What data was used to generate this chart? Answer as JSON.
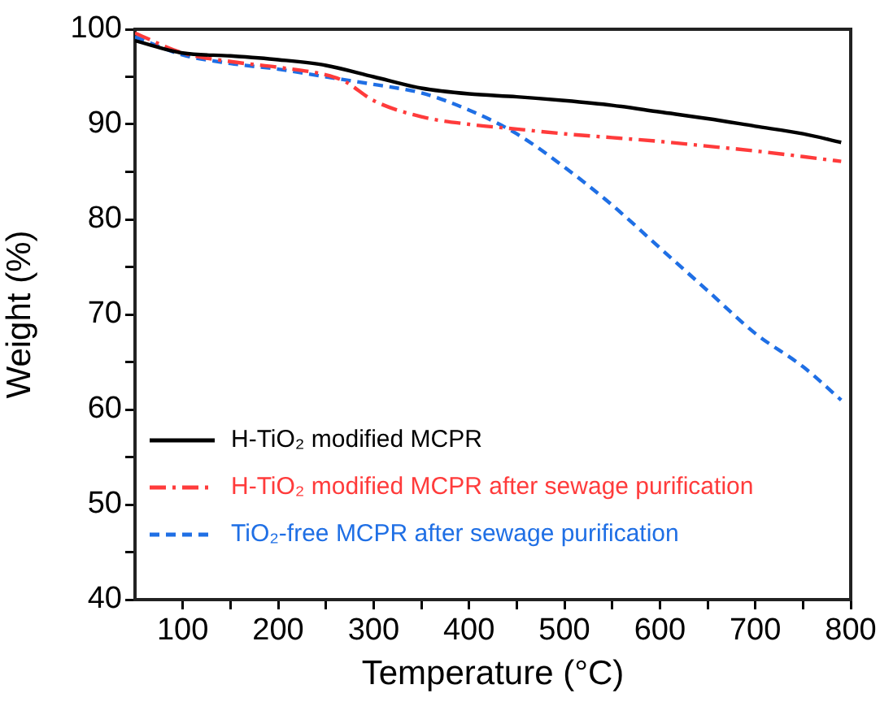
{
  "chart_data": {
    "type": "line",
    "xlabel": "Temperature (°C)",
    "ylabel": "Weight (%)",
    "xlim": [
      50,
      800
    ],
    "ylim": [
      40,
      100
    ],
    "xticks": [
      100,
      {
        "value": 150,
        "label": null
      },
      200,
      {
        "value": 250,
        "label": null
      },
      300,
      {
        "value": 350,
        "label": null
      },
      400,
      {
        "value": 450,
        "label": null
      },
      500,
      {
        "value": 550,
        "label": null
      },
      600,
      {
        "value": 650,
        "label": null
      },
      700,
      {
        "value": 750,
        "label": null
      },
      800
    ],
    "yticks": [
      40,
      {
        "value": 45,
        "label": null
      },
      50,
      {
        "value": 55,
        "label": null
      },
      60,
      {
        "value": 65,
        "label": null
      },
      70,
      {
        "value": 75,
        "label": null
      },
      80,
      {
        "value": 85,
        "label": null
      },
      90,
      {
        "value": 95,
        "label": null
      },
      100
    ],
    "grid": false,
    "legend": "bottom left",
    "marker": "none",
    "series": [
      {
        "name": "H-TiO₂ modified MCPR",
        "color": "#000000",
        "line_style": "solid",
        "x": [
          50,
          100,
          150,
          200,
          250,
          300,
          350,
          400,
          450,
          500,
          550,
          600,
          650,
          700,
          750,
          790
        ],
        "values": [
          98.8,
          97.5,
          97.2,
          96.8,
          96.2,
          95.0,
          93.8,
          93.2,
          92.9,
          92.5,
          92.0,
          91.3,
          90.6,
          89.8,
          89.0,
          88.1
        ]
      },
      {
        "name": "H-TiO₂ modified MCPR after sewage purification",
        "color": "#ff3b3b",
        "line_style": "dashdot",
        "x": [
          50,
          100,
          150,
          200,
          250,
          270,
          300,
          350,
          400,
          450,
          500,
          550,
          600,
          650,
          700,
          750,
          790
        ],
        "values": [
          99.6,
          97.5,
          96.6,
          96.0,
          95.2,
          94.5,
          92.5,
          90.8,
          90.0,
          89.5,
          89.0,
          88.6,
          88.2,
          87.7,
          87.2,
          86.6,
          86.1
        ]
      },
      {
        "name": "TiO₂-free MCPR after sewage purification",
        "color": "#1f6fe5",
        "line_style": "dashed",
        "x": [
          50,
          100,
          150,
          200,
          250,
          300,
          350,
          400,
          450,
          500,
          550,
          600,
          650,
          700,
          750,
          790
        ],
        "values": [
          99.2,
          97.3,
          96.4,
          95.8,
          95.0,
          94.2,
          93.3,
          91.5,
          89.0,
          85.5,
          81.5,
          77.0,
          72.5,
          68.0,
          64.5,
          61.0
        ]
      }
    ]
  }
}
